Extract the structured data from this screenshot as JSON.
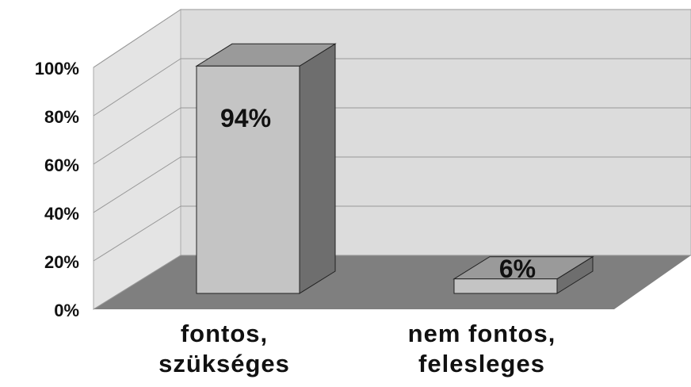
{
  "chart_data": {
    "type": "bar3d",
    "categories": [
      "fontos,\nszükséges",
      "nem fontos,\nfelesleges"
    ],
    "values": [
      94,
      6
    ],
    "value_labels": [
      "94%",
      "6%"
    ],
    "color": "#c4c4c4",
    "ylim": [
      0,
      100
    ],
    "yticks": [
      {
        "value": 0,
        "label": "0%"
      },
      {
        "value": 20,
        "label": "20%"
      },
      {
        "value": 40,
        "label": "40%"
      },
      {
        "value": 60,
        "label": "60%"
      },
      {
        "value": 80,
        "label": "80%"
      },
      {
        "value": 100,
        "label": "100%"
      }
    ],
    "grid": true
  }
}
